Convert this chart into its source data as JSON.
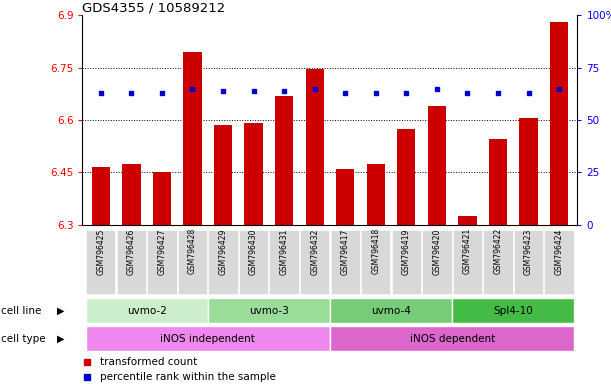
{
  "title": "GDS4355 / 10589212",
  "samples": [
    "GSM796425",
    "GSM796426",
    "GSM796427",
    "GSM796428",
    "GSM796429",
    "GSM796430",
    "GSM796431",
    "GSM796432",
    "GSM796417",
    "GSM796418",
    "GSM796419",
    "GSM796420",
    "GSM796421",
    "GSM796422",
    "GSM796423",
    "GSM796424"
  ],
  "transformed_count": [
    6.465,
    6.475,
    6.45,
    6.795,
    6.585,
    6.59,
    6.67,
    6.745,
    6.46,
    6.475,
    6.575,
    6.64,
    6.325,
    6.545,
    6.605,
    6.88
  ],
  "percentile_rank": [
    63,
    63,
    63,
    65,
    64,
    64,
    64,
    65,
    63,
    63,
    63,
    65,
    63,
    63,
    63,
    65
  ],
  "ymin": 6.3,
  "ymax": 6.9,
  "yticks": [
    6.3,
    6.45,
    6.6,
    6.75,
    6.9
  ],
  "right_yticks": [
    0,
    25,
    50,
    75,
    100
  ],
  "right_yticklabels": [
    "0",
    "25",
    "50",
    "75",
    "100%"
  ],
  "bar_color": "#cc0000",
  "dot_color": "#0000cc",
  "cell_line_colors": [
    "#cceecc",
    "#99dd99",
    "#77cc77",
    "#44bb44"
  ],
  "cell_line_groups": [
    {
      "label": "uvmo-2",
      "start": 0,
      "end": 3
    },
    {
      "label": "uvmo-3",
      "start": 4,
      "end": 7
    },
    {
      "label": "uvmo-4",
      "start": 8,
      "end": 11
    },
    {
      "label": "Spl4-10",
      "start": 12,
      "end": 15
    }
  ],
  "cell_type_independent_color": "#ee88ee",
  "cell_type_dependent_color": "#dd66cc",
  "grid_lines": [
    6.45,
    6.6,
    6.75
  ],
  "bar_width": 0.6,
  "label_row_facecolor": "#dddddd"
}
